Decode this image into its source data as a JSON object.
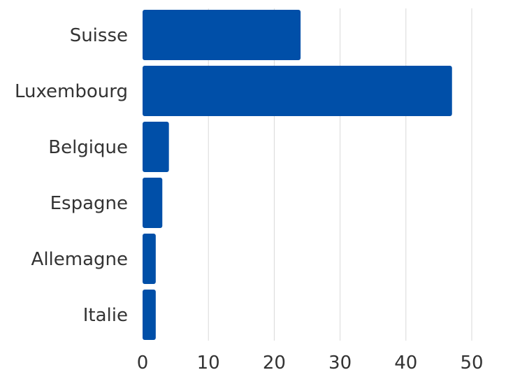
{
  "chart_data": {
    "type": "bar",
    "orientation": "horizontal",
    "categories": [
      "Suisse",
      "Luxembourg",
      "Belgique",
      "Espagne",
      "Allemagne",
      "Italie"
    ],
    "values": [
      24,
      47,
      4,
      3,
      2,
      2
    ],
    "xlim": [
      0,
      50
    ],
    "xticks": [
      0,
      10,
      20,
      30,
      40,
      50
    ],
    "grid": "vertical",
    "bar_color": "#004fa8"
  }
}
